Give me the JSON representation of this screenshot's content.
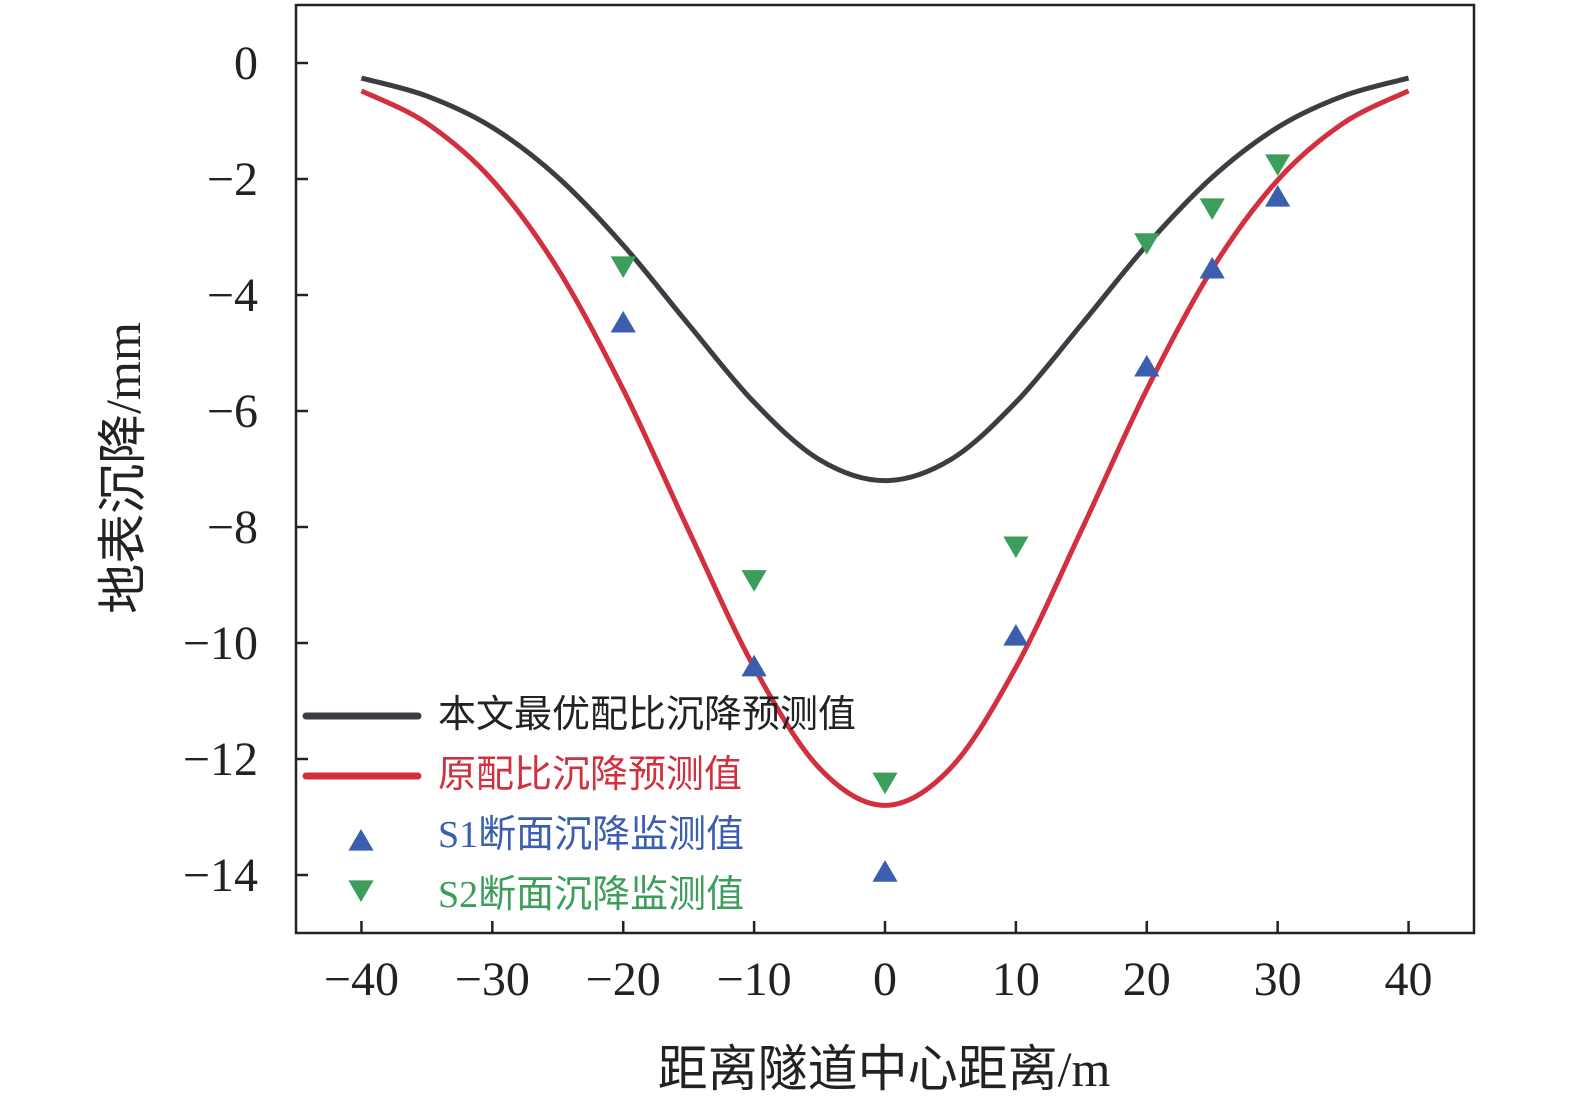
{
  "chart_data": {
    "type": "line",
    "title": "",
    "xlabel": "距离隧道中心距离/m",
    "ylabel": "地表沉降/mm",
    "xlim": [
      -45,
      45
    ],
    "ylim": [
      -15,
      1
    ],
    "xticks": [
      -40,
      -30,
      -20,
      -10,
      0,
      10,
      20,
      30,
      40
    ],
    "xtick_labels": [
      "−40",
      "−30",
      "−20",
      "−10",
      "0",
      "10",
      "20",
      "30",
      "40"
    ],
    "yticks": [
      0,
      -2,
      -4,
      -6,
      -8,
      -10,
      -12,
      -14
    ],
    "ytick_labels": [
      "0",
      "−2",
      "−4",
      "−6",
      "−8",
      "−10",
      "−12",
      "−14"
    ],
    "grid": false,
    "legend_placement": "bottom-left",
    "series": [
      {
        "name": "本文最优配比沉降预测值",
        "kind": "line",
        "color": "#3c3d42",
        "x": [
          -40,
          -35,
          -30,
          -25,
          -20,
          -15,
          -10,
          -5,
          0,
          5,
          10,
          15,
          20,
          25,
          30,
          35,
          40
        ],
        "y": [
          -0.26,
          -0.57,
          -1.11,
          -1.97,
          -3.14,
          -4.51,
          -5.85,
          -6.84,
          -7.2,
          -6.84,
          -5.85,
          -4.51,
          -3.14,
          -1.97,
          -1.11,
          -0.57,
          -0.26
        ]
      },
      {
        "name": "原配比沉降预测值",
        "kind": "line",
        "color": "#d2303f",
        "x": [
          -40,
          -35,
          -30,
          -25,
          -20,
          -15,
          -10,
          -5,
          0,
          5,
          10,
          15,
          20,
          25,
          30,
          35,
          40
        ],
        "y": [
          -0.48,
          -1.04,
          -2.02,
          -3.55,
          -5.63,
          -8.06,
          -10.42,
          -12.16,
          -12.8,
          -12.16,
          -10.42,
          -8.06,
          -5.63,
          -3.55,
          -2.02,
          -1.04,
          -0.48
        ]
      },
      {
        "name": "S1断面沉降监测值",
        "kind": "scatter",
        "marker": "triangle-up",
        "color": "#3b5fae",
        "x": [
          -20,
          -10,
          0,
          10,
          20,
          25,
          30
        ],
        "y": [
          -4.48,
          -10.41,
          -13.95,
          -9.88,
          -5.24,
          -3.55,
          -2.31
        ]
      },
      {
        "name": "S2断面沉降监测值",
        "kind": "scatter",
        "marker": "triangle-down",
        "color": "#3d9e5c",
        "x": [
          -20,
          -10,
          0,
          10,
          20,
          25,
          30
        ],
        "y": [
          -3.5,
          -8.91,
          -12.4,
          -8.33,
          -3.1,
          -2.5,
          -1.74
        ]
      }
    ]
  }
}
